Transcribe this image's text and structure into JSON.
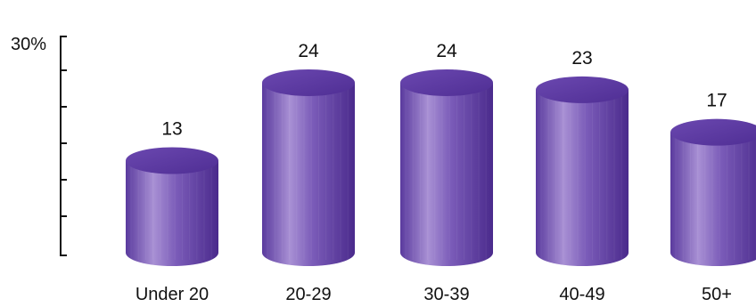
{
  "chart_data": {
    "type": "bar",
    "style": "3d-cylinder",
    "categories": [
      "Under 20",
      "20-29",
      "30-39",
      "40-49",
      "50+"
    ],
    "values": [
      13,
      24,
      24,
      23,
      17
    ],
    "ymax_label": "30%",
    "ylim": [
      0,
      30
    ],
    "grid": false,
    "colors": {
      "bar_dark": "#4a2a8c",
      "bar_mid": "#6f4fb0",
      "bar_light": "#a08cd0",
      "bar_top": "#5e3aa6",
      "axis": "#111111"
    }
  }
}
